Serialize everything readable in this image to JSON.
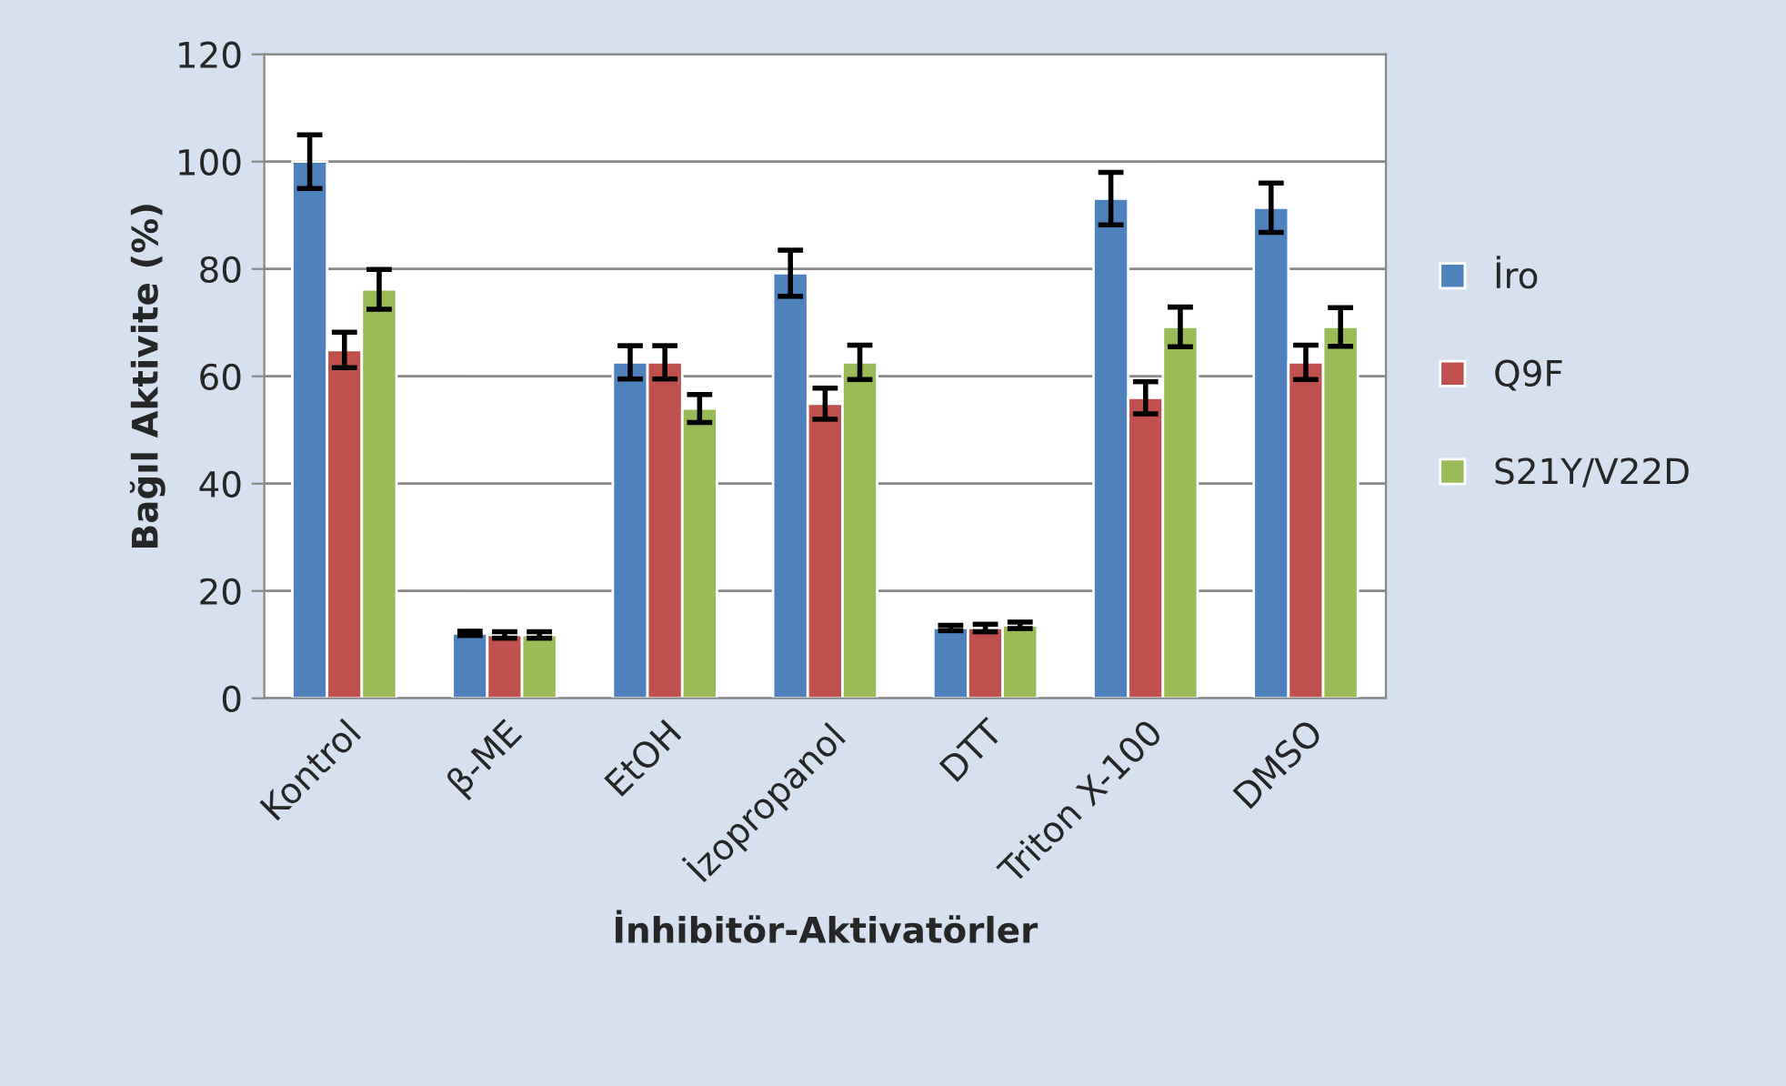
{
  "chart_data": {
    "type": "bar",
    "xlabel": "İnhibitör-Aktivatörler",
    "ylabel": "Bağıl Aktivite (%)",
    "categories": [
      "Kontrol",
      "β-ME",
      "EtOH",
      "İzopropanol",
      "DTT",
      "Triton X-100",
      "DMSO"
    ],
    "series": [
      {
        "name": "İro",
        "color": "#4f81bd",
        "values": [
          100,
          12.1,
          62.6,
          79.2,
          13.1,
          93.1,
          91.4
        ],
        "errors": [
          5,
          0.4,
          3.1,
          4.3,
          0.5,
          4.9,
          4.6
        ]
      },
      {
        "name": "Q9F",
        "color": "#c0504d",
        "values": [
          64.9,
          11.8,
          62.6,
          54.9,
          13.1,
          56,
          62.6
        ],
        "errors": [
          3.3,
          0.6,
          3.1,
          2.9,
          0.7,
          3,
          3.2
        ]
      },
      {
        "name": "S21Y/V22D",
        "color": "#9bbb59",
        "values": [
          76.2,
          11.8,
          54,
          62.6,
          13.6,
          69.2,
          69.2
        ],
        "errors": [
          3.7,
          0.6,
          2.6,
          3.2,
          0.6,
          3.7,
          3.6
        ]
      }
    ],
    "ylim": [
      0,
      120
    ],
    "yticks": [
      0,
      20,
      40,
      60,
      80,
      100,
      120
    ],
    "grid": "y",
    "legend": "right"
  }
}
